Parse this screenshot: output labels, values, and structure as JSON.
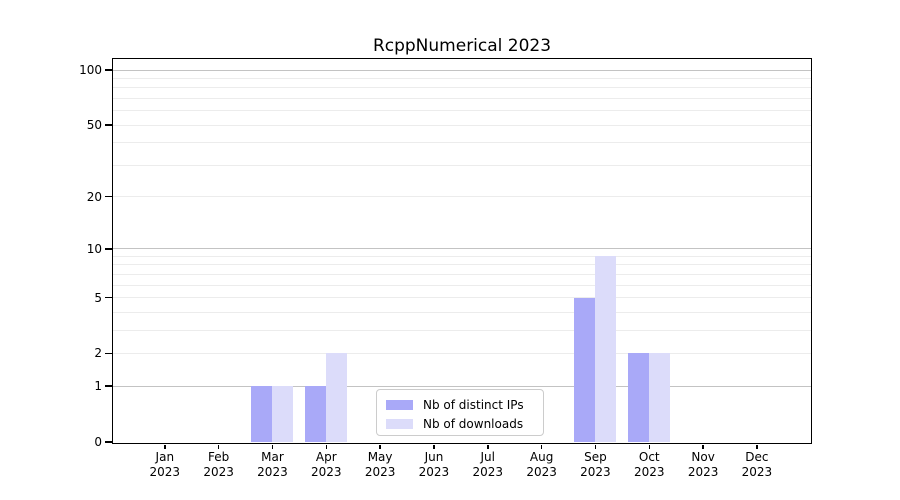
{
  "window": {
    "background": "#ffffff"
  },
  "chart_data": {
    "type": "bar",
    "title": "RcppNumerical 2023",
    "xlabel": "",
    "ylabel": "",
    "x": {
      "categories": [
        "Jan",
        "Feb",
        "Mar",
        "Apr",
        "May",
        "Jun",
        "Jul",
        "Aug",
        "Sep",
        "Oct",
        "Nov",
        "Dec"
      ],
      "year_label": "2023"
    },
    "y_axis": {
      "scale": "log1p",
      "ticks": [
        0,
        1,
        2,
        5,
        10,
        20,
        50,
        100
      ],
      "ylim": [
        0,
        115
      ],
      "major_gridlines": [
        1,
        10,
        100
      ],
      "minor_gridlines": [
        2,
        3,
        4,
        5,
        6,
        7,
        8,
        9,
        20,
        30,
        40,
        50,
        60,
        70,
        80,
        90
      ],
      "grid": "on"
    },
    "series": [
      {
        "name": "Nb of distinct IPs",
        "color": "#a9a9f8",
        "values": [
          0,
          0,
          1,
          1,
          0,
          0,
          0,
          0,
          5,
          2,
          0,
          0
        ]
      },
      {
        "name": "Nb of downloads",
        "color": "#dcdcfa",
        "values": [
          0,
          0,
          1,
          2,
          0,
          0,
          0,
          0,
          9,
          2,
          0,
          0
        ]
      }
    ],
    "legend": {
      "position": "lower center",
      "border_color": "#cccccc"
    },
    "colors": {
      "axis": "#000000",
      "text": "#000000",
      "major_grid": "#c3c3c3",
      "minor_grid": "#ececec"
    }
  }
}
